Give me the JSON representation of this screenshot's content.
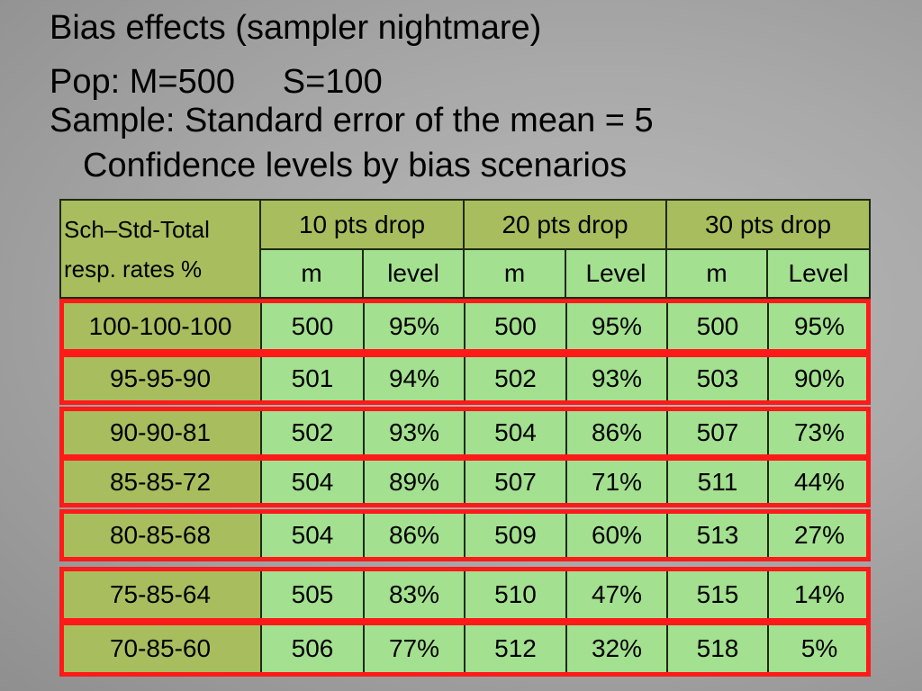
{
  "title": "Bias effects (sampler nightmare)",
  "population": "Pop: M=500     S=100",
  "sample": "Sample: Standard error of the mean = 5",
  "subtitle": "Confidence levels by bias scenarios",
  "table": {
    "row_header": [
      "Sch–Std-Total",
      "resp. rates %"
    ],
    "groups": [
      "10 pts drop",
      "20 pts drop",
      "30 pts drop"
    ],
    "subheaders": [
      "m",
      "level",
      "m",
      "Level",
      "m",
      "Level"
    ],
    "rows": [
      {
        "label": "100-100-100",
        "cells": [
          "500",
          "95%",
          "500",
          "95%",
          "500",
          "95%"
        ]
      },
      {
        "label": "95-95-90",
        "cells": [
          "501",
          "94%",
          "502",
          "93%",
          "503",
          "90%"
        ]
      },
      {
        "label": "90-90-81",
        "cells": [
          "502",
          "93%",
          "504",
          "86%",
          "507",
          "73%"
        ]
      },
      {
        "label": "85-85-72",
        "cells": [
          "504",
          "89%",
          "507",
          "71%",
          "511",
          "44%"
        ]
      },
      {
        "label": "80-85-68",
        "cells": [
          "504",
          "86%",
          "509",
          "60%",
          "513",
          "27%"
        ]
      },
      {
        "label": "75-85-64",
        "cells": [
          "505",
          "83%",
          "510",
          "47%",
          "515",
          "14%"
        ]
      },
      {
        "label": "70-85-60",
        "cells": [
          "506",
          "77%",
          "512",
          "32%",
          "518",
          "5%"
        ]
      }
    ]
  },
  "colors": {
    "header_bg": "#a8bd5e",
    "cell_bg": "#a3e08f",
    "highlight_border": "#ff1a1a"
  }
}
